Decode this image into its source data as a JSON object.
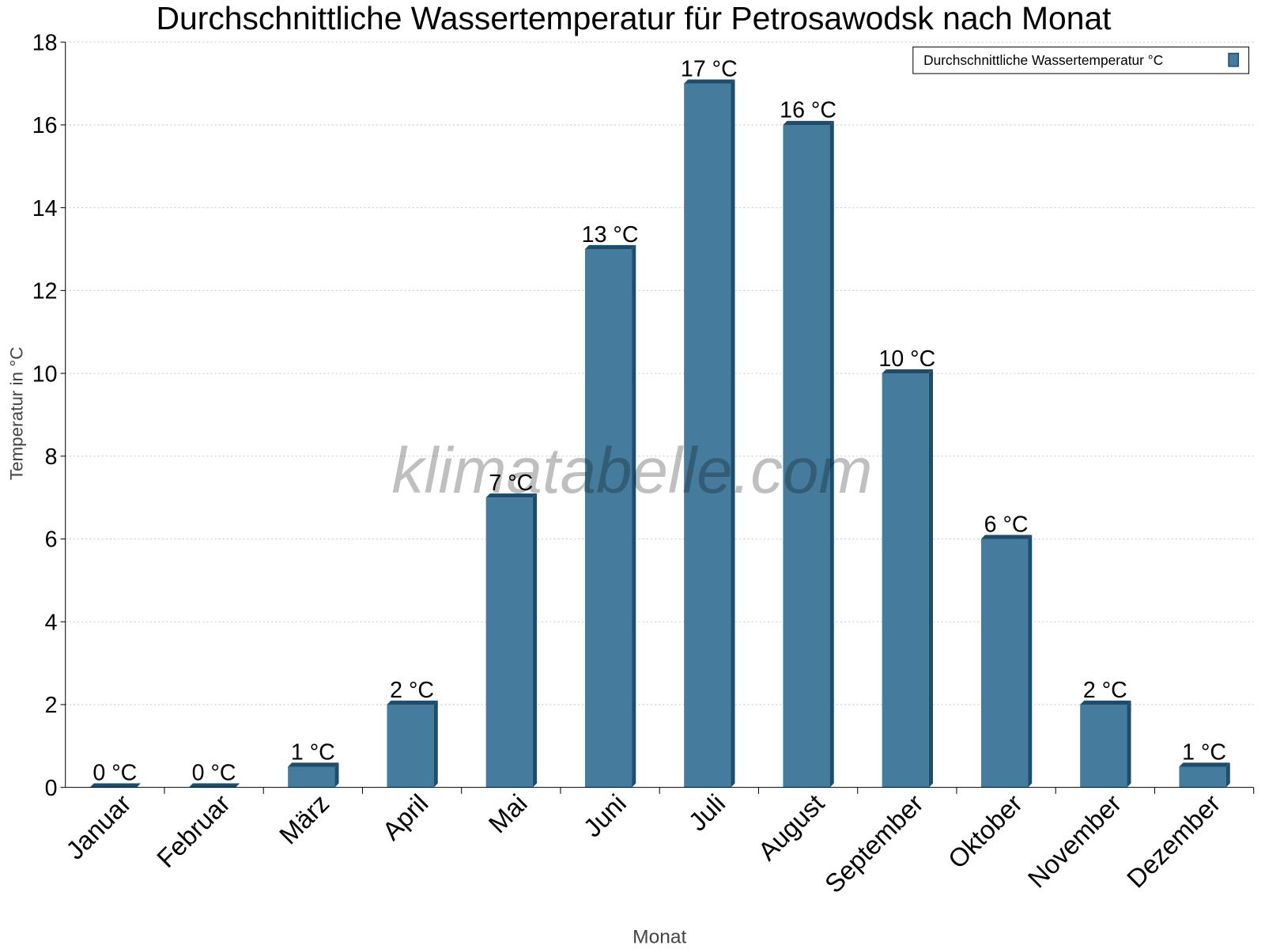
{
  "chart_data": {
    "type": "bar",
    "title": "Durchschnittliche Wassertemperatur für Petrosawodsk nach Monat",
    "xlabel": "Monat",
    "ylabel": "Temperatur in °C",
    "ylim": [
      0,
      18
    ],
    "yticks": [
      0,
      2,
      4,
      6,
      8,
      10,
      12,
      14,
      16,
      18
    ],
    "grid": true,
    "legend_position": "top-right",
    "watermark": "klimatabelle.com",
    "colors": {
      "bar": "#457b9d",
      "bar_dark": "#1b4d6e",
      "grid": "#c8c8c8"
    },
    "categories": [
      "Januar",
      "Februar",
      "März",
      "April",
      "Mai",
      "Juni",
      "Juli",
      "August",
      "September",
      "Oktober",
      "November",
      "Dezember"
    ],
    "series": [
      {
        "name": "Durchschnittliche Wassertemperatur °C",
        "values": [
          0,
          0,
          0.5,
          2,
          7,
          13,
          17,
          16,
          10,
          6,
          2,
          0.5
        ],
        "labels": [
          "0 °C",
          "0 °C",
          "1 °C",
          "2 °C",
          "7 °C",
          "13 °C",
          "17 °C",
          "16 °C",
          "10 °C",
          "6 °C",
          "2 °C",
          "1 °C"
        ]
      }
    ]
  }
}
